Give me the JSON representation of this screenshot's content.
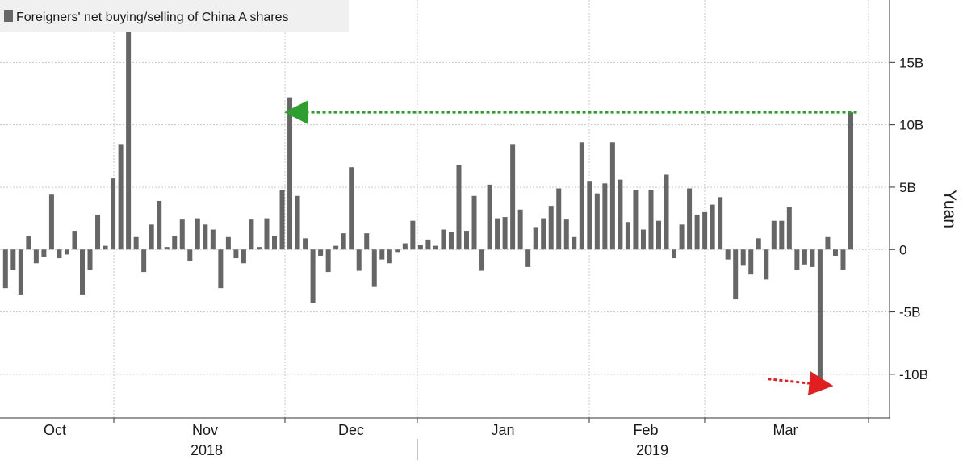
{
  "chart_data": {
    "type": "bar",
    "legend": "Foreigners' net buying/selling of China A shares",
    "ylabel": "Yuan",
    "ylim": [
      -13.5,
      20
    ],
    "y_ticks": [
      {
        "value": 15,
        "label": "15B"
      },
      {
        "value": 10,
        "label": "10B"
      },
      {
        "value": 5,
        "label": "5B"
      },
      {
        "value": 0,
        "label": "0"
      },
      {
        "value": -5,
        "label": "-5B"
      },
      {
        "value": -10,
        "label": "-10B"
      }
    ],
    "months": [
      "Oct",
      "Nov",
      "Dec",
      "Jan",
      "Feb",
      "Mar"
    ],
    "years": [
      "2018",
      "2019"
    ],
    "grid": true,
    "legend_position": "top-left",
    "colors": {
      "bar": "#666666",
      "grid": "#c8c8c8",
      "axis": "#333333",
      "green_arrow": "#2e9e2e",
      "red_arrow": "#e02020",
      "legend_bg": "#f0f0f0"
    },
    "series": [
      {
        "values": [
          -3.1,
          -1.6,
          -3.6,
          1.1,
          -1.1,
          -0.6,
          4.4,
          -0.7,
          -0.4,
          1.5,
          -3.6,
          -1.6,
          2.8,
          0.3,
          5.7,
          8.4,
          17.5,
          1.0,
          -1.8,
          2.0,
          3.9,
          0.2,
          1.1,
          2.4,
          -0.9,
          2.5,
          2.0,
          1.6,
          -3.1,
          1.0,
          -0.7,
          -1.1,
          2.4,
          0.2,
          2.5,
          1.1,
          4.8,
          12.2,
          4.3,
          0.9,
          -4.3,
          -0.5,
          -1.8,
          0.3,
          1.3,
          6.6,
          -1.7,
          1.3,
          -3.0,
          -0.8,
          -1.1,
          -0.2,
          0.5,
          2.3,
          0.4,
          0.8,
          0.3,
          1.6,
          1.4,
          6.8,
          1.5,
          4.3,
          -1.7,
          5.2,
          2.5,
          2.6,
          8.4,
          3.2,
          -1.4,
          1.8,
          2.5,
          3.5,
          4.9,
          2.4,
          1.0,
          8.6,
          5.5,
          4.5,
          5.3,
          8.6,
          5.6,
          2.2,
          4.8,
          1.6,
          4.8,
          2.3,
          6.0,
          -0.7,
          2.0,
          4.9,
          2.8,
          3.0,
          3.6,
          4.2,
          -0.8,
          -4.0,
          -1.3,
          -2.0,
          0.9,
          -2.4,
          2.3,
          2.3,
          3.4,
          -1.6,
          -1.2,
          -1.4,
          -10.7,
          1.0,
          -0.5,
          -1.6,
          11.0
        ]
      }
    ],
    "annotations": [
      {
        "type": "arrow",
        "color": "green",
        "style": "dotted",
        "from_bar": 111,
        "to_bar": 37,
        "level": 11.0
      },
      {
        "type": "arrow",
        "color": "red",
        "style": "dotted",
        "toward_bar": 107,
        "level": -10.7
      }
    ]
  }
}
